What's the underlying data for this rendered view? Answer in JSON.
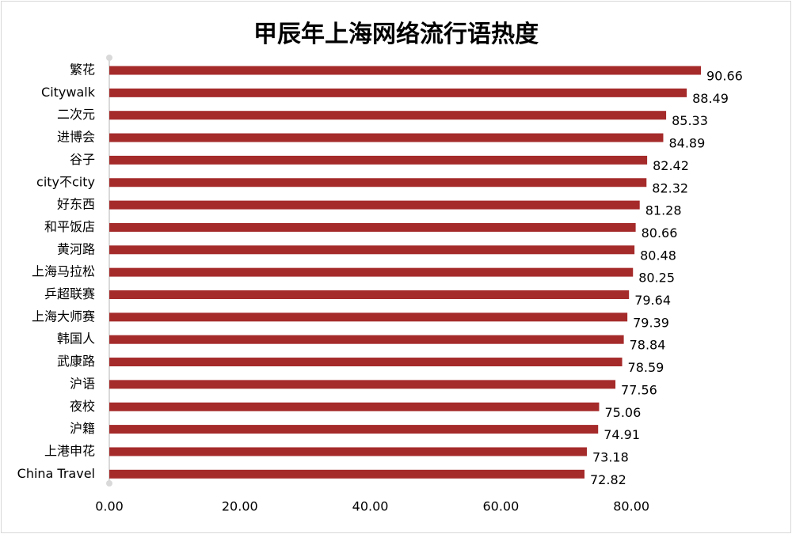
{
  "chart_data": {
    "type": "bar",
    "orientation": "horizontal",
    "title": "甲辰年上海网络流行语热度",
    "xlabel": "",
    "ylabel": "",
    "categories": [
      "繁花",
      "Citywalk",
      "二次元",
      "进博会",
      "谷子",
      "city不city",
      "好东西",
      "和平饭店",
      "黄河路",
      "上海马拉松",
      "乒超联赛",
      "上海大师赛",
      "韩国人",
      "武康路",
      "沪语",
      "夜校",
      "沪籍",
      "上港申花",
      "China Travel"
    ],
    "values": [
      90.66,
      88.49,
      85.33,
      84.89,
      82.42,
      82.32,
      81.28,
      80.66,
      80.48,
      80.25,
      79.64,
      79.39,
      78.84,
      78.59,
      77.56,
      75.06,
      74.91,
      73.18,
      72.82
    ],
    "value_labels": [
      "90.66",
      "88.49",
      "85.33",
      "84.89",
      "82.42",
      "82.32",
      "81.28",
      "80.66",
      "80.48",
      "80.25",
      "79.64",
      "79.39",
      "78.84",
      "78.59",
      "77.56",
      "75.06",
      "74.91",
      "73.18",
      "72.82"
    ],
    "xticks": [
      0,
      20,
      40,
      60,
      80
    ],
    "xtick_labels": [
      "0.00",
      "20.00",
      "40.00",
      "60.00",
      "80.00"
    ],
    "xlim": [
      0,
      90.66
    ],
    "grid": false,
    "legend": "none",
    "bar_color": "#a52a2a"
  }
}
